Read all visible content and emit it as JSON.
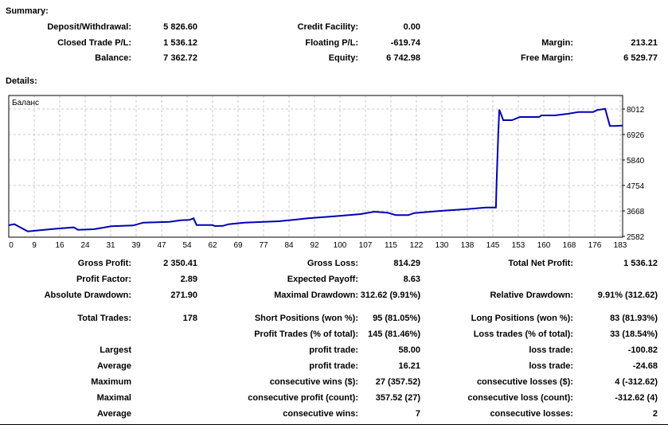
{
  "summary": {
    "title": "Summary:",
    "rows": [
      [
        "Deposit/Withdrawal:",
        "5 826.60",
        "Credit Facility:",
        "0.00",
        "",
        ""
      ],
      [
        "Closed Trade P/L:",
        "1 536.12",
        "Floating P/L:",
        "-619.74",
        "Margin:",
        "213.21"
      ],
      [
        "Balance:",
        "7 362.72",
        "Equity:",
        "6 742.98",
        "Free Margin:",
        "6 529.77"
      ]
    ]
  },
  "details": {
    "title": "Details:",
    "rows": [
      [
        "Gross Profit:",
        "2 350.41",
        "Gross Loss:",
        "814.29",
        "Total Net Profit:",
        "1 536.12"
      ],
      [
        "Profit Factor:",
        "2.89",
        "Expected Payoff:",
        "8.63",
        "",
        ""
      ],
      [
        "Absolute Drawdown:",
        "271.90",
        "Maximal Drawdown:",
        "312.62 (9.91%)",
        "Relative Drawdown:",
        "9.91% (312.62)"
      ],
      [
        "Total Trades:",
        "178",
        "Short Positions (won %):",
        "95 (81.05%)",
        "Long Positions (won %):",
        "83 (81.93%)"
      ],
      [
        "",
        "",
        "Profit Trades (% of total):",
        "145 (81.46%)",
        "Loss trades (% of total):",
        "33 (18.54%)"
      ],
      [
        "Largest",
        "",
        "profit trade:",
        "58.00",
        "loss trade:",
        "-100.82"
      ],
      [
        "Average",
        "",
        "profit trade:",
        "16.21",
        "loss trade:",
        "-24.68"
      ],
      [
        "Maximum",
        "",
        "consecutive wins ($):",
        "27 (357.52)",
        "consecutive losses ($):",
        "4 (-312.62)"
      ],
      [
        "Maximal",
        "",
        "consecutive profit (count):",
        "357.52 (27)",
        "consecutive loss (count):",
        "-312.62 (4)"
      ],
      [
        "Average",
        "",
        "consecutive wins:",
        "7",
        "consecutive losses:",
        "2"
      ]
    ]
  },
  "chart_data": {
    "type": "line",
    "title": "Баланс",
    "xlabel": "",
    "ylabel": "",
    "x_ticks": [
      0,
      9,
      16,
      24,
      31,
      39,
      47,
      54,
      62,
      69,
      77,
      84,
      92,
      100,
      107,
      115,
      122,
      130,
      138,
      145,
      153,
      160,
      168,
      176,
      183
    ],
    "y_ticks": [
      2582,
      3668,
      4754,
      5840,
      6926,
      8012
    ],
    "xlim": [
      0,
      183.7
    ],
    "ylim": [
      2582,
      8589
    ],
    "grid": true,
    "line_color": "#0000b4",
    "series": [
      {
        "name": "Баланс",
        "points": [
          [
            0,
            3057
          ],
          [
            1.7,
            3100
          ],
          [
            5.7,
            2796
          ],
          [
            10,
            2853
          ],
          [
            15.2,
            2921
          ],
          [
            19.5,
            2965
          ],
          [
            20.7,
            2863
          ],
          [
            25.5,
            2887
          ],
          [
            30.7,
            3013
          ],
          [
            37.2,
            3047
          ],
          [
            40.3,
            3170
          ],
          [
            48.1,
            3204
          ],
          [
            51.5,
            3270
          ],
          [
            54.1,
            3284
          ],
          [
            55.3,
            3352
          ],
          [
            56.2,
            3067
          ],
          [
            61,
            3067
          ],
          [
            61.7,
            3023
          ],
          [
            64.1,
            3030
          ],
          [
            65.8,
            3100
          ],
          [
            70.5,
            3170
          ],
          [
            80.8,
            3227
          ],
          [
            86.3,
            3305
          ],
          [
            89.6,
            3352
          ],
          [
            97.5,
            3440
          ],
          [
            105.3,
            3532
          ],
          [
            109.4,
            3634
          ],
          [
            113.4,
            3590
          ],
          [
            115.8,
            3488
          ],
          [
            119.6,
            3488
          ],
          [
            121.3,
            3578
          ],
          [
            129.1,
            3668
          ],
          [
            137.2,
            3746
          ],
          [
            142.7,
            3814
          ],
          [
            145.8,
            3814
          ],
          [
            146,
            4855
          ],
          [
            146.5,
            6950
          ],
          [
            146.8,
            7989
          ],
          [
            148,
            7537
          ],
          [
            150.6,
            7537
          ],
          [
            153,
            7673
          ],
          [
            158.7,
            7673
          ],
          [
            159.4,
            7741
          ],
          [
            163.4,
            7741
          ],
          [
            167.3,
            7809
          ],
          [
            170.6,
            7887
          ],
          [
            174.9,
            7887
          ],
          [
            176.1,
            7967
          ],
          [
            178.5,
            8022
          ],
          [
            179.9,
            7289
          ],
          [
            181.6,
            7289
          ],
          [
            183.7,
            7311
          ]
        ]
      }
    ]
  }
}
